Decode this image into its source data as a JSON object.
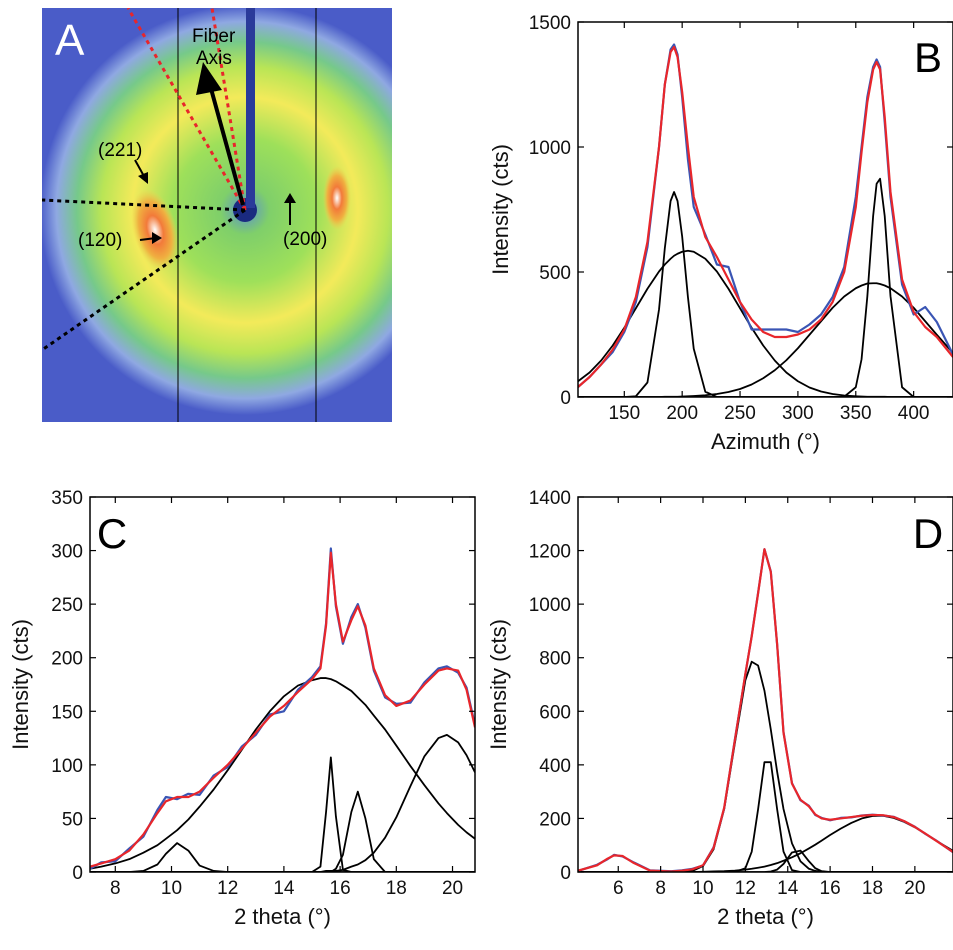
{
  "panel_a": {
    "label": "A",
    "fiber_axis": [
      "Fiber",
      "Axis"
    ],
    "reflections": [
      "(221)",
      "(120)",
      "(200)"
    ]
  },
  "chart_data": [
    {
      "type": "line",
      "label": "B",
      "xlabel": "Azimuth (°)",
      "ylabel": "Intensity (cts)",
      "xlim": [
        110,
        434
      ],
      "ylim": [
        0,
        1500
      ],
      "xticks": [
        150,
        200,
        250,
        300,
        350,
        400
      ],
      "yticks": [
        0,
        500,
        1000,
        1500
      ],
      "x": [
        110,
        120,
        130,
        140,
        150,
        160,
        170,
        180,
        185,
        190,
        193,
        196,
        200,
        205,
        210,
        220,
        230,
        240,
        250,
        260,
        270,
        280,
        290,
        300,
        310,
        320,
        330,
        340,
        350,
        355,
        360,
        365,
        368,
        371,
        375,
        380,
        390,
        400,
        410,
        420,
        434
      ],
      "series": [
        {
          "color": "#000000",
          "values": [
            0,
            0,
            0,
            0,
            0,
            3,
            58,
            350,
            595,
            784,
            820,
            784,
            642,
            399,
            193,
            21,
            0,
            0,
            0,
            0,
            0,
            0,
            0,
            0,
            0,
            0,
            0,
            0,
            0,
            0,
            0,
            0,
            0,
            0,
            0,
            0,
            0,
            0,
            0,
            0,
            0
          ]
        },
        {
          "color": "#000000",
          "values": [
            63,
            98,
            146,
            206,
            277,
            355,
            433,
            502,
            530,
            553,
            565,
            573,
            581,
            585,
            581,
            553,
            502,
            433,
            355,
            277,
            206,
            146,
            98,
            63,
            38,
            22,
            12,
            6,
            3,
            2,
            1,
            1,
            1,
            1,
            1,
            0,
            0,
            0,
            0,
            0,
            0
          ]
        },
        {
          "color": "#000000",
          "values": [
            0,
            0,
            0,
            0,
            0,
            0,
            0,
            0,
            1,
            1,
            1,
            1,
            2,
            3,
            4,
            7,
            12,
            20,
            32,
            50,
            75,
            107,
            147,
            195,
            249,
            303,
            357,
            402,
            435,
            446,
            454,
            455,
            455,
            452,
            446,
            435,
            402,
            357,
            303,
            249,
            176
          ]
        },
        {
          "color": "#000000",
          "values": [
            0,
            0,
            0,
            0,
            0,
            0,
            0,
            0,
            0,
            0,
            0,
            0,
            0,
            0,
            0,
            0,
            0,
            0,
            0,
            0,
            0,
            0,
            0,
            0,
            0,
            0,
            0,
            1,
            39,
            151,
            403,
            724,
            853,
            873,
            724,
            403,
            39,
            0,
            0,
            0,
            0
          ]
        },
        {
          "color": "#3a55b4",
          "values": [
            40,
            80,
            130,
            180,
            260,
            380,
            600,
            1000,
            1250,
            1390,
            1410,
            1370,
            1200,
            950,
            760,
            650,
            530,
            520,
            380,
            270,
            270,
            270,
            270,
            260,
            290,
            330,
            400,
            520,
            800,
            1000,
            1200,
            1320,
            1350,
            1320,
            1100,
            800,
            450,
            330,
            360,
            300,
            170
          ]
        },
        {
          "color": "#e8262b",
          "values": [
            40,
            80,
            130,
            190,
            270,
            400,
            620,
            1000,
            1250,
            1380,
            1400,
            1360,
            1220,
            1000,
            800,
            640,
            560,
            470,
            380,
            310,
            260,
            240,
            240,
            250,
            270,
            310,
            380,
            500,
            760,
            980,
            1180,
            1310,
            1340,
            1310,
            1120,
            820,
            470,
            340,
            280,
            240,
            160
          ]
        }
      ]
    },
    {
      "type": "line",
      "label": "C",
      "xlabel": "2 theta (°)",
      "ylabel": "Intensity (cts)",
      "xlim": [
        7.1,
        20.8
      ],
      "ylim": [
        0,
        350
      ],
      "xticks": [
        8,
        10,
        12,
        14,
        16,
        18,
        20
      ],
      "yticks": [
        0,
        50,
        100,
        150,
        200,
        250,
        300,
        350
      ],
      "x": [
        7.1,
        7.5,
        8,
        8.5,
        9,
        9.5,
        9.8,
        10.2,
        10.6,
        11,
        11.5,
        12,
        12.5,
        13,
        13.5,
        14,
        14.5,
        15,
        15.3,
        15.5,
        15.67,
        15.85,
        16.1,
        16.4,
        16.63,
        16.9,
        17.2,
        17.6,
        18,
        18.5,
        19,
        19.5,
        19.8,
        20.2,
        20.5,
        20.8
      ],
      "series": [
        {
          "color": "#000000",
          "values": [
            0,
            0,
            0,
            0,
            1,
            7,
            17,
            27,
            20,
            6,
            1,
            0,
            0,
            0,
            0,
            0,
            0,
            0,
            0,
            0,
            0,
            0,
            0,
            0,
            0,
            0,
            0,
            0,
            0,
            0,
            0,
            0,
            0,
            0,
            0,
            0
          ]
        },
        {
          "color": "#000000",
          "values": [
            3,
            5,
            8,
            12,
            18,
            25,
            31,
            39,
            49,
            61,
            77,
            95,
            114,
            133,
            150,
            164,
            174,
            179,
            181,
            181,
            180,
            178,
            174,
            169,
            163,
            156,
            146,
            133,
            118,
            99,
            81,
            64,
            55,
            44,
            37,
            31
          ]
        },
        {
          "color": "#000000",
          "values": [
            0,
            0,
            0,
            0,
            0,
            0,
            0,
            0,
            0,
            0,
            0,
            0,
            0,
            0,
            0,
            0,
            0,
            0,
            5,
            56,
            107,
            52,
            2,
            0,
            0,
            0,
            0,
            0,
            0,
            0,
            0,
            0,
            0,
            0,
            0,
            0
          ]
        },
        {
          "color": "#000000",
          "values": [
            0,
            0,
            0,
            0,
            0,
            0,
            0,
            0,
            0,
            0,
            0,
            0,
            0,
            0,
            0,
            0,
            0,
            0,
            0,
            0,
            0,
            3,
            16,
            56,
            75,
            50,
            12,
            0,
            0,
            0,
            0,
            0,
            0,
            0,
            0,
            0
          ]
        },
        {
          "color": "#000000",
          "values": [
            0,
            0,
            0,
            0,
            0,
            0,
            0,
            0,
            0,
            0,
            0,
            0,
            0,
            0,
            0,
            0,
            0,
            0,
            0,
            1,
            1,
            1,
            2,
            5,
            7,
            11,
            18,
            32,
            51,
            80,
            108,
            125,
            128,
            121,
            109,
            93
          ]
        },
        {
          "color": "#3a55b4",
          "values": [
            3,
            9,
            10,
            22,
            33,
            58,
            70,
            68,
            73,
            72,
            90,
            98,
            117,
            128,
            147,
            150,
            170,
            182,
            192,
            232,
            302,
            248,
            213,
            238,
            250,
            228,
            188,
            163,
            157,
            158,
            177,
            190,
            192,
            186,
            172,
            137
          ]
        },
        {
          "color": "#e8262b",
          "values": [
            5,
            8,
            12,
            20,
            35,
            55,
            66,
            70,
            70,
            75,
            88,
            100,
            115,
            130,
            145,
            155,
            168,
            180,
            190,
            230,
            298,
            250,
            215,
            235,
            248,
            230,
            190,
            165,
            155,
            160,
            175,
            188,
            190,
            188,
            170,
            135
          ]
        }
      ]
    },
    {
      "type": "line",
      "label": "D",
      "xlabel": "2 theta (°)",
      "ylabel": "Intensity (cts)",
      "xlim": [
        4.1,
        21.8
      ],
      "ylim": [
        0,
        1400
      ],
      "xticks": [
        6,
        8,
        10,
        12,
        14,
        16,
        18,
        20
      ],
      "yticks": [
        0,
        200,
        400,
        600,
        800,
        1000,
        1200,
        1400
      ],
      "x": [
        4.1,
        5,
        5.5,
        5.8,
        6.2,
        6.7,
        7.5,
        8.5,
        9,
        9.5,
        10,
        10.5,
        11,
        11.5,
        12,
        12.3,
        12.6,
        12.9,
        13.2,
        13.5,
        13.8,
        14.2,
        14.6,
        15,
        15.3,
        15.6,
        16,
        16.5,
        17,
        17.5,
        18,
        18.5,
        19,
        19.5,
        20,
        20.5,
        21,
        21.8
      ],
      "series": [
        {
          "color": "#000000",
          "values": [
            0,
            0,
            0,
            0,
            0,
            0,
            0,
            0,
            1,
            4,
            22,
            85,
            235,
            479,
            716,
            785,
            771,
            677,
            532,
            374,
            235,
            107,
            40,
            12,
            4,
            1,
            0,
            0,
            0,
            0,
            0,
            0,
            0,
            0,
            0,
            0,
            0,
            0
          ]
        },
        {
          "color": "#000000",
          "values": [
            0,
            0,
            0,
            0,
            0,
            0,
            0,
            0,
            0,
            0,
            0,
            0,
            0,
            0,
            14,
            76,
            234,
            410,
            410,
            234,
            76,
            7,
            0,
            0,
            0,
            0,
            0,
            0,
            0,
            0,
            0,
            0,
            0,
            0,
            0,
            0,
            0,
            0
          ]
        },
        {
          "color": "#000000",
          "values": [
            0,
            0,
            0,
            0,
            0,
            0,
            0,
            0,
            0,
            0,
            0,
            0,
            0,
            0,
            0,
            0,
            0,
            0,
            2,
            9,
            30,
            73,
            80,
            40,
            14,
            3,
            0,
            0,
            0,
            0,
            0,
            0,
            0,
            0,
            0,
            0,
            0,
            0
          ]
        },
        {
          "color": "#000000",
          "values": [
            0,
            0,
            0,
            0,
            0,
            0,
            0,
            0,
            0,
            0,
            1,
            2,
            3,
            5,
            9,
            12,
            16,
            20,
            26,
            33,
            42,
            55,
            70,
            88,
            102,
            117,
            138,
            162,
            183,
            200,
            209,
            210,
            202,
            187,
            167,
            143,
            117,
            79
          ]
        },
        {
          "color": "#3a55b4",
          "values": [
            4,
            27,
            48,
            64,
            58,
            37,
            6,
            3,
            6,
            12,
            24,
            92,
            238,
            492,
            738,
            882,
            1042,
            1205,
            1122,
            848,
            522,
            332,
            268,
            247,
            213,
            202,
            193,
            202,
            204,
            211,
            214,
            211,
            206,
            189,
            169,
            142,
            118,
            74
          ]
        },
        {
          "color": "#e8262b",
          "values": [
            5,
            25,
            50,
            62,
            60,
            35,
            5,
            2,
            5,
            10,
            25,
            90,
            240,
            490,
            740,
            880,
            1040,
            1205,
            1120,
            850,
            520,
            330,
            270,
            245,
            215,
            200,
            195,
            200,
            205,
            210,
            213,
            212,
            205,
            190,
            168,
            143,
            117,
            75
          ]
        }
      ]
    }
  ]
}
